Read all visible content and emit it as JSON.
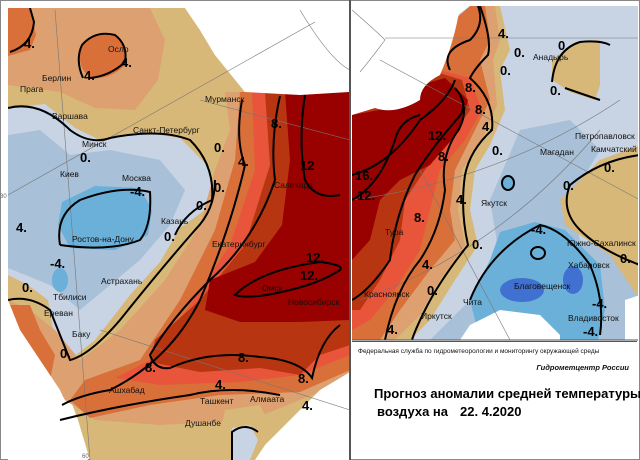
{
  "colors": {
    "dark_red": "#990000",
    "brown_red": "#b83512",
    "red_orange": "#e8553a",
    "orange": "#d9703a",
    "salmon": "#dda070",
    "tan": "#d8b878",
    "light_blue": "#c8d4e4",
    "mid_blue": "#a8c0d8",
    "blue": "#6ab0d8",
    "dark_blue": "#4070d0"
  },
  "left_map": {
    "cities": [
      "Осло",
      "Берлин",
      "Прага",
      "Варшава",
      "Мурманск",
      "Санкт-Петербург",
      "Минск",
      "Киев",
      "Москва",
      "Салехард",
      "Казань",
      "Ростов-на-Дону",
      "Екатеринбург",
      "Астрахань",
      "Омск",
      "Новосибирск",
      "Тбилиси",
      "Ереван",
      "Баку",
      "Ашхабад",
      "Ташкент",
      "Алмаата",
      "Душанбе"
    ],
    "isolines": [
      "4.",
      "4.",
      "4.",
      "0.",
      "0.",
      "0.",
      "0.",
      "-4.",
      "-4.",
      "0.",
      "0.",
      "8.",
      "8.",
      "8.",
      "8.",
      "12",
      "12.",
      "12.",
      "4.",
      "4.",
      "4.",
      "0.",
      "4."
    ],
    "grid_labels": [
      "30",
      "60"
    ]
  },
  "right_map": {
    "cities": [
      "Анадырь",
      "Петропавловск",
      "Камчатский",
      "Магадан",
      "Якутск",
      "Тура",
      "Южно-Сахалинск",
      "Хабаровск",
      "Благовещенск",
      "Красноярск",
      "Чита",
      "Иркутск",
      "Владивосток"
    ],
    "isolines": [
      "4.",
      "0.",
      "0.",
      "0.",
      "0.",
      "0.",
      "0.",
      "0.",
      "8.",
      "8.",
      "12.",
      "8.",
      "16.",
      "12.",
      "8.",
      "4.",
      "4.",
      "4.",
      "4.",
      "0.",
      "0.",
      "0.",
      "-4.",
      "-4.",
      "-4."
    ]
  },
  "caption": {
    "agency": "Федеральная служба по гидрометеорологии и мониторингу окружающей среды",
    "center": "Гидрометцентр России",
    "title_line1": "Прогноз аномалии средней температуры",
    "title_line2": "воздуха на",
    "date": "22. 4.2020"
  }
}
